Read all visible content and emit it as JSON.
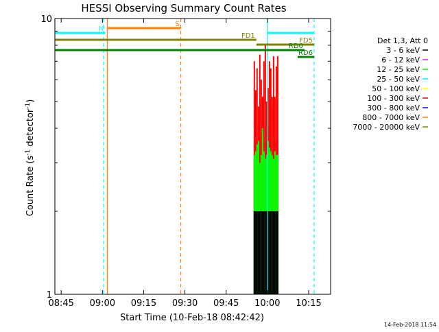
{
  "chart_data": {
    "type": "line",
    "title": "HESSI Observing Summary Count Rates",
    "xlabel": "Start Time (10-Feb-18 08:42:42)",
    "ylabel_main": "Count Rate (s",
    "ylabel_sup1": "-1",
    "ylabel_mid": " detector",
    "ylabel_sup2": "-1",
    "ylabel_end": ")",
    "y_scale": "log",
    "ylim": [
      1,
      10
    ],
    "xlim": [
      "08:42:42",
      "10:23:00"
    ],
    "x_ticks": [
      "08:45",
      "09:00",
      "09:15",
      "09:30",
      "09:45",
      "10:00",
      "10:15"
    ],
    "y_ticks": [
      "1",
      "10"
    ],
    "legend_position": "right",
    "legend": {
      "title": "Det 1,3, Att 0",
      "entries": [
        {
          "label": "3 - 6 keV",
          "color": "#000000"
        },
        {
          "label": "6 - 12 keV",
          "color": "#ff00ff"
        },
        {
          "label": "12 - 25 keV",
          "color": "#00ff00"
        },
        {
          "label": "25 - 50 keV",
          "color": "#00ffff"
        },
        {
          "label": "50 - 100 keV",
          "color": "#ffff00"
        },
        {
          "label": "100 - 300 keV",
          "color": "#ff0000"
        },
        {
          "label": "300 - 800 keV",
          "color": "#0000ff"
        },
        {
          "label": "800 - 7000 keV",
          "color": "#ff8000"
        },
        {
          "label": "7000 - 20000 keV",
          "color": "#808000"
        }
      ]
    },
    "flag_bars": [
      {
        "label": "S",
        "start": "09:02:00",
        "end": "09:28:30",
        "color": "#ff8000"
      },
      {
        "label": "N",
        "start": "08:42:42",
        "end": "09:01:00",
        "color": "#00ffff"
      },
      {
        "label": "",
        "start": "10:00:00",
        "end": "10:17:00",
        "color": "#00ffff"
      },
      {
        "label": "FD1",
        "start": "08:42:42",
        "end": "09:56:00",
        "color": "#808000"
      },
      {
        "label": "FD5",
        "start": "09:56:00",
        "end": "10:17:00",
        "color": "#808000"
      },
      {
        "label": "RD0",
        "start": "08:42:42",
        "end": "10:13:30",
        "color": "#008000"
      },
      {
        "label": "RD6",
        "start": "10:11:00",
        "end": "10:17:00",
        "color": "#008000"
      }
    ],
    "event_lines": [
      {
        "time": "08:42:42",
        "style": "solid",
        "color": "#00ffff"
      },
      {
        "time": "09:00:30",
        "style": "dashed",
        "color": "#00ffff"
      },
      {
        "time": "09:01:45",
        "style": "solid",
        "color": "#ff8000"
      },
      {
        "time": "09:28:30",
        "style": "dashed",
        "color": "#ff8000"
      },
      {
        "time": "10:00:00",
        "style": "solid",
        "color": "#00ffff"
      },
      {
        "time": "10:17:00",
        "style": "dashed",
        "color": "#00ffff"
      }
    ],
    "burst": {
      "start": "09:55:00",
      "end": "10:04:00",
      "series": [
        {
          "name": "800 - 7000 keV",
          "color": "#ff8000",
          "values": [
            2.0,
            2.0,
            2.0,
            2.0,
            2.0,
            2.0,
            2.0,
            2.0,
            2.0,
            2.0,
            2.0,
            2.0,
            2.0,
            2.0,
            2.0,
            2.0,
            2.0,
            2.0
          ]
        },
        {
          "name": "300 - 800 keV",
          "color": "#0000ff",
          "values": [
            3.0,
            3.0,
            3.0,
            3.0,
            3.0,
            3.0,
            3.0,
            3.0,
            3.0,
            3.0,
            3.0,
            3.0,
            3.0,
            3.0,
            3.0,
            3.0,
            3.0,
            3.0
          ]
        },
        {
          "name": "50 - 100 keV",
          "color": "#ffff00",
          "values": [
            3.6,
            3.6,
            3.7,
            3.6,
            3.5,
            3.6,
            4.0,
            3.6,
            3.6,
            3.6,
            3.6,
            3.7,
            3.6,
            3.6,
            3.6,
            3.6,
            3.6,
            3.6
          ]
        },
        {
          "name": "25 - 50 keV",
          "color": "#00ffff",
          "values": [
            3.6,
            3.6,
            3.6,
            3.6,
            3.7,
            3.6,
            4.3,
            3.6,
            3.6,
            3.6,
            4.0,
            3.6,
            3.6,
            3.6,
            3.6,
            3.6,
            3.6,
            3.6
          ]
        },
        {
          "name": "100 - 300 keV",
          "color": "#ff0000",
          "values": [
            7.0,
            5.5,
            6.6,
            4.8,
            7.4,
            6.0,
            5.2,
            7.0,
            8.0,
            5.0,
            5.6,
            7.0,
            6.6,
            5.2,
            7.3,
            5.2,
            6.7,
            7.3
          ]
        },
        {
          "name": "12 - 25 keV",
          "color": "#00ff00",
          "values": [
            3.2,
            3.3,
            3.5,
            3.6,
            3.0,
            3.2,
            4.0,
            3.3,
            3.1,
            3.2,
            3.6,
            3.4,
            3.3,
            3.2,
            3.1,
            3.3,
            3.2,
            3.2
          ]
        },
        {
          "name": "3 - 6 keV",
          "color": "#000000",
          "values": [
            2.0,
            2.0,
            2.0,
            2.0,
            2.0,
            2.0,
            2.0,
            2.0,
            2.0,
            2.0,
            2.0,
            2.0,
            2.0,
            2.0,
            2.0,
            2.0,
            2.0,
            2.0
          ]
        }
      ]
    }
  },
  "footer": {
    "timestamp": "14-Feb-2018 11:54"
  }
}
